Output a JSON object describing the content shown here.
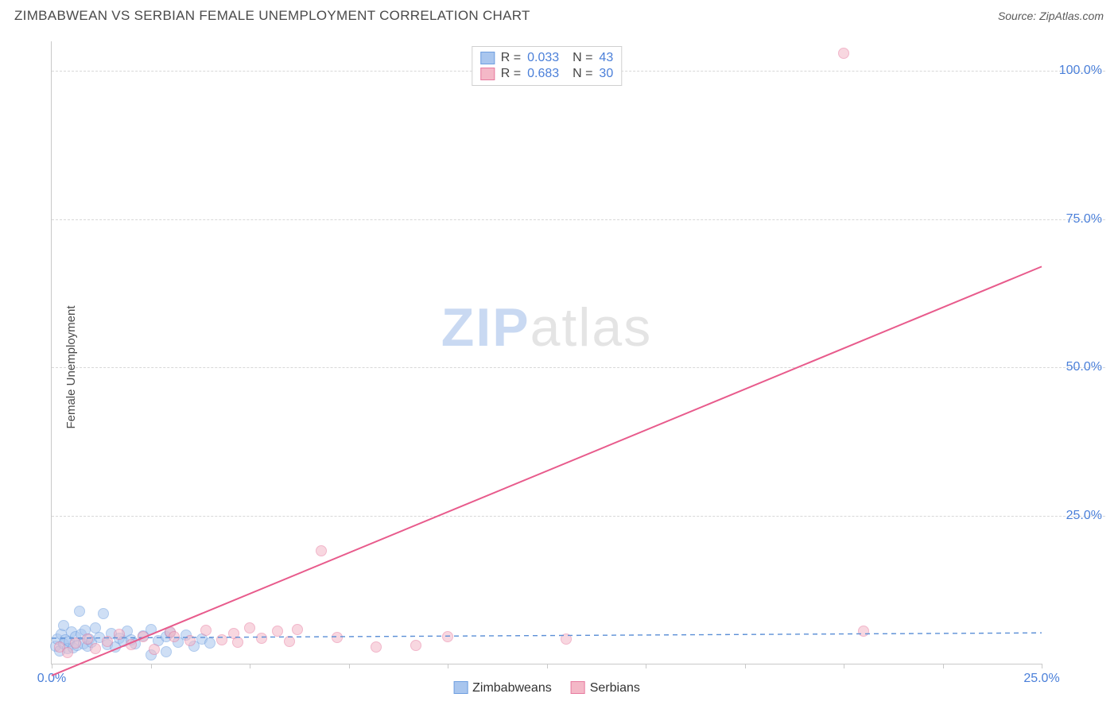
{
  "title": "ZIMBABWEAN VS SERBIAN FEMALE UNEMPLOYMENT CORRELATION CHART",
  "source": "Source: ZipAtlas.com",
  "ylabel": "Female Unemployment",
  "watermark": {
    "part1": "ZIP",
    "part2": "atlas"
  },
  "chart": {
    "type": "scatter",
    "xlim": [
      0,
      25
    ],
    "ylim": [
      0,
      105
    ],
    "xticks": [
      0,
      2.5,
      5,
      7.5,
      10,
      12.5,
      15,
      17.5,
      20,
      22.5,
      25
    ],
    "xtick_labels": {
      "0": "0.0%",
      "25": "25.0%"
    },
    "yticks": [
      25,
      50,
      75,
      100
    ],
    "ytick_labels": [
      "25.0%",
      "50.0%",
      "75.0%",
      "100.0%"
    ],
    "grid_color": "#d8d8d8",
    "axis_color": "#c9c9c9",
    "background_color": "#ffffff",
    "tick_label_color": "#4a7fd9",
    "series": [
      {
        "name": "Zimbabweans",
        "color_fill": "#a9c6ee",
        "color_stroke": "#6f9fe0",
        "marker_radius": 7,
        "fill_opacity": 0.55,
        "line": {
          "dash": "6,5",
          "width": 1.4,
          "color": "#5b8fd6",
          "y_start": 4.3,
          "y_end": 5.2
        },
        "r_value": "0.033",
        "n_value": "43",
        "points": [
          [
            0.1,
            3.0
          ],
          [
            0.15,
            4.2
          ],
          [
            0.2,
            2.1
          ],
          [
            0.25,
            5.0
          ],
          [
            0.3,
            3.3
          ],
          [
            0.3,
            6.5
          ],
          [
            0.35,
            4.0
          ],
          [
            0.4,
            2.5
          ],
          [
            0.45,
            3.8
          ],
          [
            0.5,
            5.3
          ],
          [
            0.55,
            2.7
          ],
          [
            0.6,
            4.6
          ],
          [
            0.65,
            3.1
          ],
          [
            0.7,
            8.8
          ],
          [
            0.75,
            4.9
          ],
          [
            0.8,
            3.4
          ],
          [
            0.85,
            5.7
          ],
          [
            0.9,
            2.9
          ],
          [
            0.95,
            4.1
          ],
          [
            1.0,
            3.6
          ],
          [
            1.1,
            6.0
          ],
          [
            1.2,
            4.4
          ],
          [
            1.3,
            8.5
          ],
          [
            1.4,
            3.2
          ],
          [
            1.5,
            5.1
          ],
          [
            1.6,
            2.8
          ],
          [
            1.7,
            4.3
          ],
          [
            1.8,
            3.7
          ],
          [
            1.9,
            5.5
          ],
          [
            2.0,
            4.0
          ],
          [
            2.1,
            3.3
          ],
          [
            2.3,
            4.7
          ],
          [
            2.5,
            1.5
          ],
          [
            2.5,
            5.8
          ],
          [
            2.7,
            3.9
          ],
          [
            2.9,
            2.0
          ],
          [
            2.9,
            4.5
          ],
          [
            3.0,
            5.2
          ],
          [
            3.2,
            3.6
          ],
          [
            3.4,
            4.8
          ],
          [
            3.6,
            3.0
          ],
          [
            3.8,
            4.2
          ],
          [
            4.0,
            3.5
          ]
        ]
      },
      {
        "name": "Serbians",
        "color_fill": "#f4b8c7",
        "color_stroke": "#e77ba0",
        "marker_radius": 7,
        "fill_opacity": 0.55,
        "line": {
          "dash": "none",
          "width": 2.0,
          "color": "#e85b8c",
          "y_start": -2.0,
          "y_end": 67.0
        },
        "r_value": "0.683",
        "n_value": "30",
        "points": [
          [
            0.2,
            2.8
          ],
          [
            0.4,
            1.9
          ],
          [
            0.6,
            3.5
          ],
          [
            0.9,
            4.1
          ],
          [
            1.1,
            2.6
          ],
          [
            1.4,
            3.8
          ],
          [
            1.7,
            5.0
          ],
          [
            2.0,
            3.2
          ],
          [
            2.3,
            4.6
          ],
          [
            2.6,
            2.4
          ],
          [
            3.0,
            5.4
          ],
          [
            3.1,
            4.5
          ],
          [
            3.5,
            3.9
          ],
          [
            3.9,
            5.6
          ],
          [
            4.3,
            4.0
          ],
          [
            4.6,
            5.1
          ],
          [
            4.7,
            3.6
          ],
          [
            5.0,
            6.0
          ],
          [
            5.3,
            4.3
          ],
          [
            5.7,
            5.5
          ],
          [
            6.0,
            3.8
          ],
          [
            6.2,
            5.8
          ],
          [
            6.8,
            19.0
          ],
          [
            7.2,
            4.4
          ],
          [
            8.2,
            2.8
          ],
          [
            9.2,
            3.1
          ],
          [
            10.0,
            4.6
          ],
          [
            13.0,
            4.2
          ],
          [
            20.0,
            103.0
          ],
          [
            20.5,
            5.5
          ]
        ]
      }
    ],
    "legend_top": [
      {
        "swatch_fill": "#a9c6ee",
        "swatch_stroke": "#6f9fe0",
        "r": "0.033",
        "n": "43"
      },
      {
        "swatch_fill": "#f4b8c7",
        "swatch_stroke": "#e77ba0",
        "r": "0.683",
        "n": "30"
      }
    ],
    "legend_bottom": [
      {
        "swatch_fill": "#a9c6ee",
        "swatch_stroke": "#6f9fe0",
        "label": "Zimbabweans"
      },
      {
        "swatch_fill": "#f4b8c7",
        "swatch_stroke": "#e77ba0",
        "label": "Serbians"
      }
    ]
  }
}
